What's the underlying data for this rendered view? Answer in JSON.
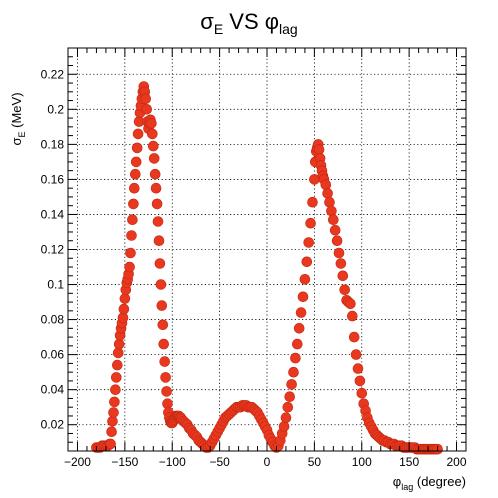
{
  "title": {
    "main": "σ",
    "main_sub": "E",
    "middle": " VS ",
    "phi": "φ",
    "phi_sub": "lag"
  },
  "ylabel": {
    "sigma": "σ",
    "sub": "E",
    "unit": " (MeV)"
  },
  "xlabel": {
    "phi": "φ",
    "sub": "lag",
    "unit": " (degree)"
  },
  "colors": {
    "marker": "#e8381f",
    "marker_edge": "#c42810",
    "grid": "#000000",
    "frame": "#000000"
  },
  "chart_data": {
    "type": "scatter",
    "xlim": [
      -210,
      210
    ],
    "ylim": [
      0.005,
      0.235
    ],
    "x_ticks": [
      -200,
      -150,
      -100,
      -50,
      0,
      50,
      100,
      150,
      200
    ],
    "x_tick_labels": [
      "−200",
      "−150",
      "−100",
      "−50",
      "0",
      "50",
      "100",
      "150",
      "200"
    ],
    "y_ticks": [
      0.02,
      0.04,
      0.06,
      0.08,
      0.1,
      0.12,
      0.14,
      0.16,
      0.18,
      0.2,
      0.22
    ],
    "y_tick_labels": [
      "0.02",
      "0.04",
      "0.06",
      "0.08",
      "0.1",
      "0.12",
      "0.14",
      "0.16",
      "0.18",
      "0.2",
      "0.22"
    ],
    "grid": true,
    "series": [
      {
        "points": [
          [
            -180,
            0.007
          ],
          [
            -178,
            0.007
          ],
          [
            -176,
            0.007
          ],
          [
            -174,
            0.008
          ],
          [
            -172,
            0.008
          ],
          [
            -170,
            0.008
          ],
          [
            -168,
            0.008
          ],
          [
            -166,
            0.009
          ],
          [
            -165,
            0.009
          ],
          [
            -164,
            0.016
          ],
          [
            -163,
            0.022
          ],
          [
            -162,
            0.027
          ],
          [
            -161,
            0.033
          ],
          [
            -160,
            0.04
          ],
          [
            -159,
            0.047
          ],
          [
            -158,
            0.054
          ],
          [
            -157,
            0.061
          ],
          [
            -156,
            0.066
          ],
          [
            -155,
            0.071
          ],
          [
            -154,
            0.075
          ],
          [
            -153,
            0.078
          ],
          [
            -152,
            0.081
          ],
          [
            -151,
            0.086
          ],
          [
            -150,
            0.092
          ],
          [
            -149,
            0.097
          ],
          [
            -148,
            0.101
          ],
          [
            -147,
            0.103
          ],
          [
            -146,
            0.106
          ],
          [
            -145,
            0.11
          ],
          [
            -144,
            0.118
          ],
          [
            -143,
            0.128
          ],
          [
            -142,
            0.137
          ],
          [
            -141,
            0.146
          ],
          [
            -140,
            0.155
          ],
          [
            -139,
            0.163
          ],
          [
            -138,
            0.17
          ],
          [
            -137,
            0.178
          ],
          [
            -136,
            0.186
          ],
          [
            -135,
            0.193
          ],
          [
            -134,
            0.198
          ],
          [
            -133,
            0.202
          ],
          [
            -132,
            0.206
          ],
          [
            -131,
            0.21
          ],
          [
            -130,
            0.213
          ],
          [
            -129,
            0.21
          ],
          [
            -128,
            0.206
          ],
          [
            -127,
            0.2
          ],
          [
            -126,
            0.193
          ],
          [
            -125,
            0.189
          ],
          [
            -124,
            0.192
          ],
          [
            -123,
            0.194
          ],
          [
            -122,
            0.192
          ],
          [
            -121,
            0.186
          ],
          [
            -120,
            0.179
          ],
          [
            -119,
            0.172
          ],
          [
            -118,
            0.163
          ],
          [
            -117,
            0.155
          ],
          [
            -116,
            0.146
          ],
          [
            -115,
            0.136
          ],
          [
            -114,
            0.125
          ],
          [
            -113,
            0.112
          ],
          [
            -112,
            0.1
          ],
          [
            -111,
            0.088
          ],
          [
            -110,
            0.077
          ],
          [
            -109,
            0.066
          ],
          [
            -108,
            0.056
          ],
          [
            -107,
            0.047
          ],
          [
            -106,
            0.039
          ],
          [
            -105,
            0.032
          ],
          [
            -104,
            0.027
          ],
          [
            -103,
            0.024
          ],
          [
            -102,
            0.022
          ],
          [
            -101,
            0.021
          ],
          [
            -100,
            0.021
          ],
          [
            -99,
            0.022
          ],
          [
            -98,
            0.023
          ],
          [
            -97,
            0.024
          ],
          [
            -96,
            0.025
          ],
          [
            -95,
            0.025
          ],
          [
            -94,
            0.025
          ],
          [
            -93,
            0.025
          ],
          [
            -92,
            0.024
          ],
          [
            -91,
            0.024
          ],
          [
            -90,
            0.023
          ],
          [
            -88,
            0.022
          ],
          [
            -86,
            0.021
          ],
          [
            -84,
            0.02
          ],
          [
            -82,
            0.018
          ],
          [
            -80,
            0.017
          ],
          [
            -78,
            0.015
          ],
          [
            -76,
            0.014
          ],
          [
            -74,
            0.013
          ],
          [
            -72,
            0.011
          ],
          [
            -70,
            0.01
          ],
          [
            -68,
            0.009
          ],
          [
            -66,
            0.008
          ],
          [
            -64,
            0.007
          ],
          [
            -62,
            0.007
          ],
          [
            -60,
            0.008
          ],
          [
            -58,
            0.01
          ],
          [
            -56,
            0.012
          ],
          [
            -54,
            0.014
          ],
          [
            -52,
            0.016
          ],
          [
            -50,
            0.018
          ],
          [
            -48,
            0.02
          ],
          [
            -46,
            0.022
          ],
          [
            -44,
            0.024
          ],
          [
            -42,
            0.025
          ],
          [
            -40,
            0.026
          ],
          [
            -38,
            0.027
          ],
          [
            -36,
            0.028
          ],
          [
            -34,
            0.029
          ],
          [
            -32,
            0.03
          ],
          [
            -30,
            0.03
          ],
          [
            -28,
            0.03
          ],
          [
            -26,
            0.031
          ],
          [
            -24,
            0.031
          ],
          [
            -22,
            0.031
          ],
          [
            -20,
            0.03
          ],
          [
            -18,
            0.03
          ],
          [
            -16,
            0.03
          ],
          [
            -14,
            0.029
          ],
          [
            -12,
            0.028
          ],
          [
            -10,
            0.027
          ],
          [
            -8,
            0.025
          ],
          [
            -6,
            0.023
          ],
          [
            -4,
            0.021
          ],
          [
            -2,
            0.019
          ],
          [
            0,
            0.017
          ],
          [
            2,
            0.014
          ],
          [
            4,
            0.012
          ],
          [
            6,
            0.01
          ],
          [
            8,
            0.008
          ],
          [
            10,
            0.007
          ],
          [
            12,
            0.008
          ],
          [
            14,
            0.011
          ],
          [
            16,
            0.015
          ],
          [
            18,
            0.019
          ],
          [
            20,
            0.024
          ],
          [
            22,
            0.03
          ],
          [
            24,
            0.036
          ],
          [
            26,
            0.043
          ],
          [
            28,
            0.05
          ],
          [
            30,
            0.058
          ],
          [
            32,
            0.066
          ],
          [
            34,
            0.075
          ],
          [
            36,
            0.084
          ],
          [
            38,
            0.093
          ],
          [
            40,
            0.103
          ],
          [
            42,
            0.113
          ],
          [
            44,
            0.124
          ],
          [
            46,
            0.135
          ],
          [
            48,
            0.147
          ],
          [
            50,
            0.16
          ],
          [
            51,
            0.17
          ],
          [
            52,
            0.176
          ],
          [
            53,
            0.178
          ],
          [
            54,
            0.18
          ],
          [
            55,
            0.177
          ],
          [
            56,
            0.172
          ],
          [
            57,
            0.168
          ],
          [
            58,
            0.165
          ],
          [
            59,
            0.162
          ],
          [
            60,
            0.16
          ],
          [
            62,
            0.157
          ],
          [
            64,
            0.152
          ],
          [
            66,
            0.147
          ],
          [
            68,
            0.142
          ],
          [
            70,
            0.137
          ],
          [
            72,
            0.131
          ],
          [
            74,
            0.125
          ],
          [
            76,
            0.118
          ],
          [
            78,
            0.112
          ],
          [
            80,
            0.105
          ],
          [
            82,
            0.097
          ],
          [
            84,
            0.091
          ],
          [
            86,
            0.09
          ],
          [
            88,
            0.089
          ],
          [
            90,
            0.082
          ],
          [
            92,
            0.07
          ],
          [
            94,
            0.06
          ],
          [
            96,
            0.052
          ],
          [
            98,
            0.045
          ],
          [
            100,
            0.038
          ],
          [
            102,
            0.032
          ],
          [
            104,
            0.028
          ],
          [
            106,
            0.024
          ],
          [
            108,
            0.021
          ],
          [
            110,
            0.019
          ],
          [
            112,
            0.017
          ],
          [
            114,
            0.015
          ],
          [
            116,
            0.014
          ],
          [
            118,
            0.013
          ],
          [
            120,
            0.012
          ],
          [
            122,
            0.011
          ],
          [
            124,
            0.011
          ],
          [
            126,
            0.01
          ],
          [
            128,
            0.01
          ],
          [
            130,
            0.009
          ],
          [
            132,
            0.009
          ],
          [
            134,
            0.009
          ],
          [
            136,
            0.008
          ],
          [
            138,
            0.008
          ],
          [
            140,
            0.008
          ],
          [
            142,
            0.008
          ],
          [
            144,
            0.007
          ],
          [
            146,
            0.007
          ],
          [
            148,
            0.007
          ],
          [
            150,
            0.007
          ],
          [
            152,
            0.007
          ],
          [
            154,
            0.007
          ],
          [
            156,
            0.007
          ],
          [
            158,
            0.006
          ],
          [
            160,
            0.006
          ],
          [
            162,
            0.006
          ],
          [
            164,
            0.006
          ],
          [
            166,
            0.006
          ],
          [
            168,
            0.006
          ],
          [
            170,
            0.006
          ],
          [
            172,
            0.006
          ],
          [
            174,
            0.006
          ],
          [
            176,
            0.006
          ],
          [
            178,
            0.006
          ],
          [
            180,
            0.006
          ]
        ]
      }
    ]
  }
}
